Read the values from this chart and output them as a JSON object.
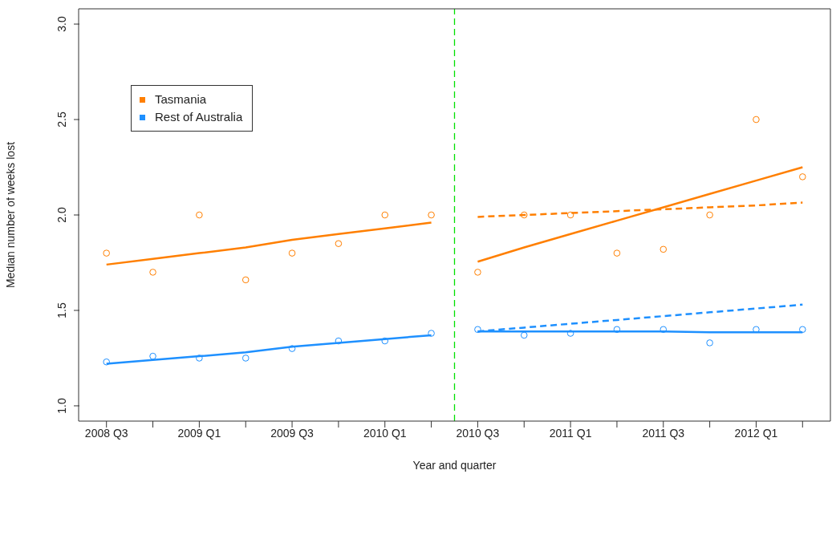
{
  "chart_data": {
    "type": "scatter",
    "xlabel": "Year and quarter",
    "ylabel": "Median number of weeks lost",
    "categories": [
      "2008 Q3",
      null,
      "2009 Q1",
      null,
      "2009 Q3",
      null,
      "2010 Q1",
      null,
      "2010 Q3",
      null,
      "2011 Q1",
      null,
      "2011 Q3",
      null,
      "2012 Q1",
      null
    ],
    "ylim": [
      0.92,
      3.08
    ],
    "yticks": [
      {
        "value": 1,
        "label": "1.0"
      },
      1.5,
      {
        "value": 2,
        "label": "2.0"
      },
      2.5,
      {
        "value": 3,
        "label": "3.0"
      }
    ],
    "marker": "circle",
    "grid": false,
    "legend": "top left",
    "series": [
      {
        "name": "Tasmania",
        "color": "#ff7f00",
        "values": [
          1.8,
          1.7,
          2.0,
          1.66,
          1.8,
          1.85,
          2.0,
          2.0,
          1.7,
          2.0,
          2.0,
          1.8,
          1.82,
          2.0,
          2.5,
          2.2
        ]
      },
      {
        "name": "Rest of Australia",
        "color": "#1e90ff",
        "values": [
          1.23,
          1.26,
          1.25,
          1.25,
          1.3,
          1.34,
          1.34,
          1.38,
          1.4,
          1.37,
          1.38,
          1.4,
          1.4,
          1.33,
          1.4,
          1.4
        ]
      },
      {
        "type": "line",
        "marker": "none",
        "color": "#ff7f00",
        "line_style": "solid",
        "values": [
          1.74,
          1.77,
          1.8,
          1.83,
          1.87,
          1.9,
          1.93,
          1.96,
          null,
          null,
          null,
          null,
          null,
          null,
          null,
          null
        ]
      },
      {
        "type": "line",
        "marker": "none",
        "color": "#ff7f00",
        "line_style": "solid",
        "values": [
          null,
          null,
          null,
          null,
          null,
          null,
          null,
          null,
          1.755,
          1.83,
          1.9,
          1.97,
          2.04,
          2.11,
          2.18,
          2.25
        ]
      },
      {
        "type": "line",
        "marker": "none",
        "color": "#ff7f00",
        "line_style": "dashed",
        "values": [
          null,
          null,
          null,
          null,
          null,
          null,
          null,
          null,
          1.99,
          2.0,
          2.01,
          2.02,
          2.03,
          2.04,
          2.05,
          2.065
        ]
      },
      {
        "type": "line",
        "marker": "none",
        "color": "#1e90ff",
        "line_style": "solid",
        "values": [
          1.22,
          1.24,
          1.26,
          1.28,
          1.31,
          1.33,
          1.35,
          1.37,
          null,
          null,
          null,
          null,
          null,
          null,
          null,
          null
        ]
      },
      {
        "type": "line",
        "marker": "none",
        "color": "#1e90ff",
        "line_style": "solid",
        "values": [
          null,
          null,
          null,
          null,
          null,
          null,
          null,
          null,
          1.39,
          1.39,
          1.39,
          1.39,
          1.39,
          1.385,
          1.385,
          1.385
        ]
      },
      {
        "type": "line",
        "marker": "none",
        "color": "#1e90ff",
        "line_style": "dashed",
        "values": [
          null,
          null,
          null,
          null,
          null,
          null,
          null,
          null,
          1.39,
          1.41,
          1.43,
          1.45,
          1.47,
          1.49,
          1.51,
          1.53
        ]
      }
    ]
  }
}
